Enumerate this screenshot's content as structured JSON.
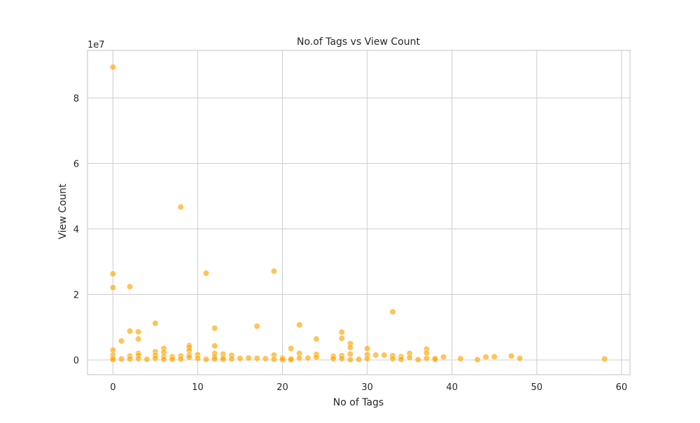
{
  "chart_data": {
    "type": "scatter",
    "title": "No.of Tags vs View Count",
    "xlabel": "No of Tags",
    "ylabel": "View Count",
    "y_offset_label": "1e7",
    "xlim": [
      -3,
      61
    ],
    "ylim": [
      -4500000,
      94500000
    ],
    "x_ticks": [
      0,
      10,
      20,
      30,
      40,
      50,
      60
    ],
    "y_ticks": [
      0,
      20000000,
      40000000,
      60000000,
      80000000
    ],
    "y_tick_labels": [
      "0",
      "2",
      "4",
      "6",
      "8"
    ],
    "grid": true,
    "marker_color": "#FFA500",
    "marker_alpha": 0.65,
    "points": [
      {
        "x": 0,
        "y": 89400000
      },
      {
        "x": 0,
        "y": 26300000
      },
      {
        "x": 0,
        "y": 22100000
      },
      {
        "x": 0,
        "y": 3000000
      },
      {
        "x": 0,
        "y": 1500000
      },
      {
        "x": 0,
        "y": 600000
      },
      {
        "x": 0,
        "y": 100000
      },
      {
        "x": 1,
        "y": 5800000
      },
      {
        "x": 1,
        "y": 300000
      },
      {
        "x": 2,
        "y": 22400000
      },
      {
        "x": 2,
        "y": 8800000
      },
      {
        "x": 2,
        "y": 1200000
      },
      {
        "x": 2,
        "y": 300000
      },
      {
        "x": 3,
        "y": 8600000
      },
      {
        "x": 3,
        "y": 6400000
      },
      {
        "x": 3,
        "y": 2000000
      },
      {
        "x": 3,
        "y": 1400000
      },
      {
        "x": 3,
        "y": 400000
      },
      {
        "x": 4,
        "y": 200000
      },
      {
        "x": 5,
        "y": 11200000
      },
      {
        "x": 5,
        "y": 2500000
      },
      {
        "x": 5,
        "y": 1400000
      },
      {
        "x": 5,
        "y": 500000
      },
      {
        "x": 6,
        "y": 3500000
      },
      {
        "x": 6,
        "y": 2300000
      },
      {
        "x": 6,
        "y": 1000000
      },
      {
        "x": 6,
        "y": 200000
      },
      {
        "x": 7,
        "y": 1000000
      },
      {
        "x": 7,
        "y": 200000
      },
      {
        "x": 8,
        "y": 46700000
      },
      {
        "x": 8,
        "y": 1200000
      },
      {
        "x": 8,
        "y": 300000
      },
      {
        "x": 9,
        "y": 4400000
      },
      {
        "x": 9,
        "y": 3800000
      },
      {
        "x": 9,
        "y": 2900000
      },
      {
        "x": 9,
        "y": 1500000
      },
      {
        "x": 9,
        "y": 800000
      },
      {
        "x": 10,
        "y": 1600000
      },
      {
        "x": 10,
        "y": 500000
      },
      {
        "x": 11,
        "y": 26500000
      },
      {
        "x": 11,
        "y": 200000
      },
      {
        "x": 12,
        "y": 9700000
      },
      {
        "x": 12,
        "y": 4300000
      },
      {
        "x": 12,
        "y": 2000000
      },
      {
        "x": 12,
        "y": 1000000
      },
      {
        "x": 12,
        "y": 300000
      },
      {
        "x": 13,
        "y": 1800000
      },
      {
        "x": 13,
        "y": 700000
      },
      {
        "x": 13,
        "y": 200000
      },
      {
        "x": 14,
        "y": 1400000
      },
      {
        "x": 14,
        "y": 300000
      },
      {
        "x": 15,
        "y": 500000
      },
      {
        "x": 16,
        "y": 600000
      },
      {
        "x": 17,
        "y": 10300000
      },
      {
        "x": 17,
        "y": 500000
      },
      {
        "x": 18,
        "y": 400000
      },
      {
        "x": 19,
        "y": 27100000
      },
      {
        "x": 19,
        "y": 1500000
      },
      {
        "x": 19,
        "y": 200000
      },
      {
        "x": 20,
        "y": 600000
      },
      {
        "x": 20,
        "y": 100000
      },
      {
        "x": 21,
        "y": 3500000
      },
      {
        "x": 21,
        "y": 400000
      },
      {
        "x": 21,
        "y": 100000
      },
      {
        "x": 22,
        "y": 10700000
      },
      {
        "x": 22,
        "y": 2000000
      },
      {
        "x": 22,
        "y": 600000
      },
      {
        "x": 23,
        "y": 600000
      },
      {
        "x": 24,
        "y": 6400000
      },
      {
        "x": 24,
        "y": 1700000
      },
      {
        "x": 24,
        "y": 800000
      },
      {
        "x": 26,
        "y": 1100000
      },
      {
        "x": 26,
        "y": 400000
      },
      {
        "x": 27,
        "y": 8500000
      },
      {
        "x": 27,
        "y": 6600000
      },
      {
        "x": 27,
        "y": 1300000
      },
      {
        "x": 27,
        "y": 400000
      },
      {
        "x": 28,
        "y": 5000000
      },
      {
        "x": 28,
        "y": 3800000
      },
      {
        "x": 28,
        "y": 1800000
      },
      {
        "x": 28,
        "y": 100000
      },
      {
        "x": 29,
        "y": 200000
      },
      {
        "x": 30,
        "y": 3500000
      },
      {
        "x": 30,
        "y": 1600000
      },
      {
        "x": 30,
        "y": 400000
      },
      {
        "x": 31,
        "y": 1500000
      },
      {
        "x": 32,
        "y": 1500000
      },
      {
        "x": 33,
        "y": 14700000
      },
      {
        "x": 33,
        "y": 1300000
      },
      {
        "x": 33,
        "y": 400000
      },
      {
        "x": 34,
        "y": 1000000
      },
      {
        "x": 34,
        "y": 200000
      },
      {
        "x": 35,
        "y": 2000000
      },
      {
        "x": 35,
        "y": 700000
      },
      {
        "x": 36,
        "y": 100000
      },
      {
        "x": 37,
        "y": 3300000
      },
      {
        "x": 37,
        "y": 2100000
      },
      {
        "x": 37,
        "y": 500000
      },
      {
        "x": 38,
        "y": 500000
      },
      {
        "x": 38,
        "y": 200000
      },
      {
        "x": 39,
        "y": 900000
      },
      {
        "x": 41,
        "y": 400000
      },
      {
        "x": 43,
        "y": 100000
      },
      {
        "x": 44,
        "y": 900000
      },
      {
        "x": 45,
        "y": 1000000
      },
      {
        "x": 47,
        "y": 1200000
      },
      {
        "x": 48,
        "y": 500000
      },
      {
        "x": 58,
        "y": 300000
      }
    ]
  }
}
